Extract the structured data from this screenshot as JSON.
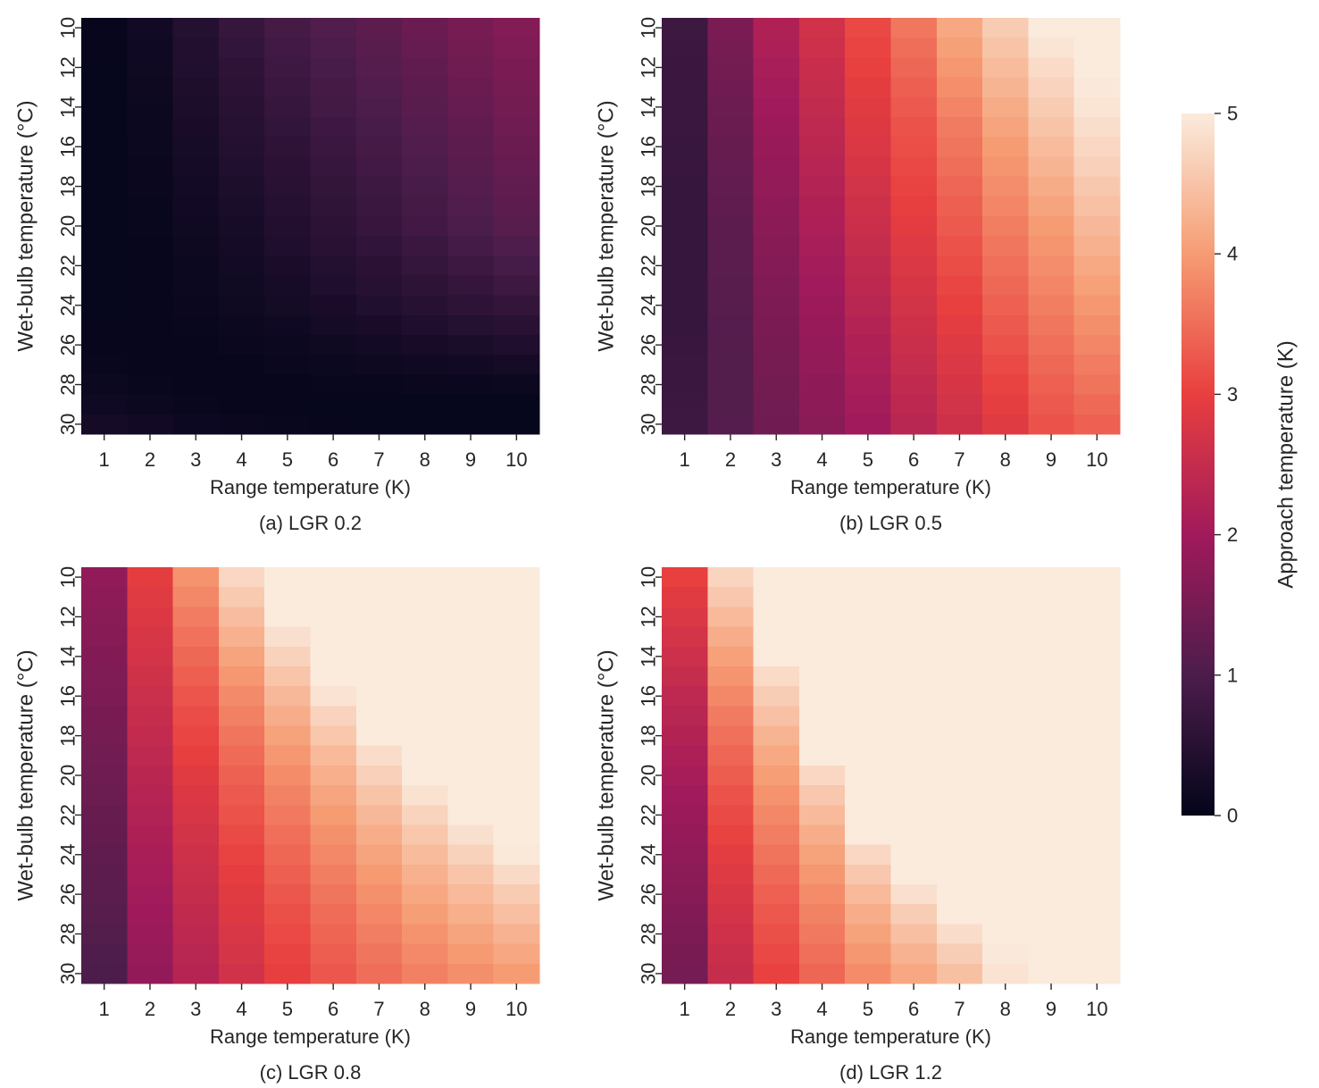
{
  "figure": {
    "colorbar": {
      "label": "Approach temperature (K)",
      "ticks": [
        "0",
        "1",
        "2",
        "3",
        "4",
        "5"
      ],
      "vmin": 0,
      "vmax": 5,
      "colormap": "rocket",
      "colormap_stops": [
        "#03051a",
        "#4c1d4b",
        "#a11a5b",
        "#e83f3f",
        "#f69c73",
        "#faebdd"
      ]
    }
  },
  "chart_data": [
    {
      "type": "heatmap",
      "caption": "(a) LGR 0.2",
      "xlabel": "Range temperature (K)",
      "ylabel": "Wet-bulb temperature (°C)",
      "x_tick_labels": [
        "1",
        "2",
        "3",
        "4",
        "5",
        "6",
        "7",
        "8",
        "9",
        "10"
      ],
      "y_tick_labels": [
        "10",
        "12",
        "14",
        "16",
        "18",
        "20",
        "22",
        "24",
        "26",
        "28",
        "30"
      ],
      "x": [
        1,
        2,
        3,
        4,
        5,
        6,
        7,
        8,
        9,
        10
      ],
      "y": [
        10,
        11,
        12,
        13,
        14,
        15,
        16,
        17,
        18,
        19,
        20,
        21,
        22,
        23,
        24,
        25,
        26,
        27,
        28,
        29,
        30
      ],
      "zrange": [
        0,
        5
      ],
      "values": [
        [
          0.05,
          0.2,
          0.45,
          0.7,
          0.9,
          1.05,
          1.2,
          1.35,
          1.5,
          1.65
        ],
        [
          0.05,
          0.18,
          0.42,
          0.65,
          0.85,
          1.0,
          1.15,
          1.3,
          1.45,
          1.6
        ],
        [
          0.04,
          0.16,
          0.4,
          0.6,
          0.8,
          0.95,
          1.1,
          1.25,
          1.4,
          1.55
        ],
        [
          0.04,
          0.15,
          0.37,
          0.56,
          0.75,
          0.9,
          1.05,
          1.2,
          1.35,
          1.5
        ],
        [
          0.04,
          0.13,
          0.34,
          0.52,
          0.7,
          0.86,
          1.0,
          1.15,
          1.3,
          1.45
        ],
        [
          0.04,
          0.12,
          0.31,
          0.48,
          0.65,
          0.81,
          0.95,
          1.1,
          1.25,
          1.4
        ],
        [
          0.04,
          0.11,
          0.28,
          0.44,
          0.6,
          0.76,
          0.9,
          1.05,
          1.2,
          1.35
        ],
        [
          0.04,
          0.1,
          0.25,
          0.4,
          0.55,
          0.71,
          0.85,
          1.0,
          1.15,
          1.3
        ],
        [
          0.04,
          0.09,
          0.22,
          0.36,
          0.5,
          0.66,
          0.8,
          0.95,
          1.1,
          1.25
        ],
        [
          0.04,
          0.08,
          0.2,
          0.32,
          0.46,
          0.61,
          0.75,
          0.9,
          1.05,
          1.2
        ],
        [
          0.04,
          0.07,
          0.17,
          0.28,
          0.42,
          0.56,
          0.7,
          0.85,
          0.98,
          1.12
        ],
        [
          0.04,
          0.06,
          0.15,
          0.25,
          0.38,
          0.5,
          0.63,
          0.76,
          0.89,
          1.02
        ],
        [
          0.04,
          0.06,
          0.13,
          0.22,
          0.33,
          0.44,
          0.55,
          0.67,
          0.79,
          0.91
        ],
        [
          0.04,
          0.05,
          0.11,
          0.19,
          0.28,
          0.38,
          0.48,
          0.58,
          0.68,
          0.79
        ],
        [
          0.04,
          0.05,
          0.09,
          0.16,
          0.23,
          0.31,
          0.4,
          0.49,
          0.57,
          0.66
        ],
        [
          0.05,
          0.05,
          0.07,
          0.12,
          0.18,
          0.24,
          0.31,
          0.38,
          0.45,
          0.52
        ],
        [
          0.06,
          0.05,
          0.06,
          0.09,
          0.13,
          0.17,
          0.22,
          0.27,
          0.32,
          0.38
        ],
        [
          0.08,
          0.06,
          0.05,
          0.06,
          0.09,
          0.12,
          0.15,
          0.18,
          0.21,
          0.24
        ],
        [
          0.12,
          0.08,
          0.06,
          0.05,
          0.06,
          0.07,
          0.08,
          0.09,
          0.1,
          0.11
        ],
        [
          0.18,
          0.12,
          0.08,
          0.06,
          0.05,
          0.04,
          0.04,
          0.04,
          0.04,
          0.04
        ],
        [
          0.25,
          0.2,
          0.14,
          0.1,
          0.07,
          0.05,
          0.04,
          0.04,
          0.04,
          0.04
        ]
      ]
    },
    {
      "type": "heatmap",
      "caption": "(b) LGR 0.5",
      "xlabel": "Range temperature (K)",
      "ylabel": "Wet-bulb temperature (°C)",
      "x_tick_labels": [
        "1",
        "2",
        "3",
        "4",
        "5",
        "6",
        "7",
        "8",
        "9",
        "10"
      ],
      "y_tick_labels": [
        "10",
        "12",
        "14",
        "16",
        "18",
        "20",
        "22",
        "24",
        "26",
        "28",
        "30"
      ],
      "x": [
        1,
        2,
        3,
        4,
        5,
        6,
        7,
        8,
        9,
        10
      ],
      "y": [
        10,
        11,
        12,
        13,
        14,
        15,
        16,
        17,
        18,
        19,
        20,
        21,
        22,
        23,
        24,
        25,
        26,
        27,
        28,
        29,
        30
      ],
      "zrange": [
        0,
        5
      ],
      "values": [
        [
          0.8,
          1.55,
          2.2,
          2.65,
          3.1,
          3.6,
          4.15,
          4.6,
          5.0,
          5.0
        ],
        [
          0.78,
          1.5,
          2.15,
          2.6,
          3.05,
          3.5,
          4.05,
          4.5,
          4.92,
          5.0
        ],
        [
          0.77,
          1.46,
          2.1,
          2.55,
          3.0,
          3.42,
          3.95,
          4.4,
          4.8,
          5.0
        ],
        [
          0.76,
          1.42,
          2.05,
          2.5,
          2.95,
          3.35,
          3.85,
          4.3,
          4.7,
          4.98
        ],
        [
          0.75,
          1.38,
          2.0,
          2.45,
          2.9,
          3.28,
          3.75,
          4.2,
          4.6,
          4.92
        ],
        [
          0.74,
          1.35,
          1.95,
          2.4,
          2.85,
          3.22,
          3.65,
          4.1,
          4.5,
          4.84
        ],
        [
          0.73,
          1.32,
          1.9,
          2.35,
          2.8,
          3.16,
          3.58,
          4.0,
          4.4,
          4.75
        ],
        [
          0.72,
          1.29,
          1.86,
          2.3,
          2.74,
          3.1,
          3.5,
          3.92,
          4.3,
          4.66
        ],
        [
          0.71,
          1.26,
          1.82,
          2.25,
          2.68,
          3.04,
          3.42,
          3.84,
          4.2,
          4.56
        ],
        [
          0.7,
          1.23,
          1.78,
          2.2,
          2.62,
          2.98,
          3.35,
          3.76,
          4.1,
          4.46
        ],
        [
          0.7,
          1.2,
          1.74,
          2.15,
          2.56,
          2.92,
          3.28,
          3.68,
          4.0,
          4.36
        ],
        [
          0.7,
          1.18,
          1.7,
          2.1,
          2.5,
          2.86,
          3.21,
          3.6,
          3.92,
          4.26
        ],
        [
          0.7,
          1.16,
          1.66,
          2.05,
          2.44,
          2.8,
          3.14,
          3.52,
          3.84,
          4.16
        ],
        [
          0.7,
          1.14,
          1.62,
          2.0,
          2.38,
          2.74,
          3.07,
          3.44,
          3.76,
          4.06
        ],
        [
          0.7,
          1.12,
          1.58,
          1.95,
          2.32,
          2.68,
          3.0,
          3.36,
          3.68,
          3.96
        ],
        [
          0.71,
          1.1,
          1.55,
          1.9,
          2.26,
          2.62,
          2.93,
          3.28,
          3.6,
          3.86
        ],
        [
          0.72,
          1.09,
          1.52,
          1.86,
          2.2,
          2.56,
          2.86,
          3.2,
          3.52,
          3.76
        ],
        [
          0.74,
          1.08,
          1.49,
          1.82,
          2.15,
          2.5,
          2.8,
          3.12,
          3.44,
          3.66
        ],
        [
          0.76,
          1.08,
          1.46,
          1.78,
          2.1,
          2.44,
          2.74,
          3.04,
          3.36,
          3.56
        ],
        [
          0.78,
          1.08,
          1.44,
          1.75,
          2.05,
          2.38,
          2.68,
          2.96,
          3.28,
          3.46
        ],
        [
          0.8,
          1.1,
          1.42,
          1.72,
          2.0,
          2.32,
          2.62,
          2.88,
          3.2,
          3.36
        ]
      ]
    },
    {
      "type": "heatmap",
      "caption": "(c) LGR 0.8",
      "xlabel": "Range temperature (K)",
      "ylabel": "Wet-bulb temperature (°C)",
      "x_tick_labels": [
        "1",
        "2",
        "3",
        "4",
        "5",
        "6",
        "7",
        "8",
        "9",
        "10"
      ],
      "y_tick_labels": [
        "10",
        "12",
        "14",
        "16",
        "18",
        "20",
        "22",
        "24",
        "26",
        "28",
        "30"
      ],
      "x": [
        1,
        2,
        3,
        4,
        5,
        6,
        7,
        8,
        9,
        10
      ],
      "y": [
        10,
        11,
        12,
        13,
        14,
        15,
        16,
        17,
        18,
        19,
        20,
        21,
        22,
        23,
        24,
        25,
        26,
        27,
        28,
        29,
        30
      ],
      "zrange": [
        0,
        5
      ],
      "values": [
        [
          1.8,
          2.95,
          3.9,
          4.75,
          5.0,
          5.0,
          5.0,
          5.0,
          5.0,
          5.0
        ],
        [
          1.76,
          2.88,
          3.78,
          4.58,
          5.0,
          5.0,
          5.0,
          5.0,
          5.0,
          5.0
        ],
        [
          1.72,
          2.82,
          3.66,
          4.42,
          5.0,
          5.0,
          5.0,
          5.0,
          5.0,
          5.0
        ],
        [
          1.68,
          2.76,
          3.55,
          4.26,
          4.85,
          5.0,
          5.0,
          5.0,
          5.0,
          5.0
        ],
        [
          1.64,
          2.7,
          3.44,
          4.1,
          4.68,
          5.0,
          5.0,
          5.0,
          5.0,
          5.0
        ],
        [
          1.6,
          2.64,
          3.34,
          3.96,
          4.52,
          5.0,
          5.0,
          5.0,
          5.0,
          5.0
        ],
        [
          1.56,
          2.58,
          3.24,
          3.82,
          4.36,
          4.9,
          5.0,
          5.0,
          5.0,
          5.0
        ],
        [
          1.52,
          2.52,
          3.15,
          3.7,
          4.22,
          4.7,
          5.0,
          5.0,
          5.0,
          5.0
        ],
        [
          1.48,
          2.46,
          3.06,
          3.58,
          4.08,
          4.54,
          5.0,
          5.0,
          5.0,
          5.0
        ],
        [
          1.44,
          2.4,
          2.98,
          3.47,
          3.95,
          4.38,
          4.82,
          5.0,
          5.0,
          5.0
        ],
        [
          1.4,
          2.34,
          2.9,
          3.37,
          3.83,
          4.24,
          4.66,
          5.0,
          5.0,
          5.0
        ],
        [
          1.36,
          2.28,
          2.82,
          3.28,
          3.72,
          4.12,
          4.5,
          4.88,
          5.0,
          5.0
        ],
        [
          1.32,
          2.22,
          2.75,
          3.2,
          3.62,
          4.0,
          4.36,
          4.7,
          5.0,
          5.0
        ],
        [
          1.28,
          2.17,
          2.68,
          3.12,
          3.52,
          3.88,
          4.22,
          4.54,
          4.86,
          5.0
        ],
        [
          1.24,
          2.12,
          2.62,
          3.04,
          3.43,
          3.78,
          4.1,
          4.4,
          4.68,
          4.96
        ],
        [
          1.2,
          2.07,
          2.56,
          2.97,
          3.34,
          3.68,
          3.98,
          4.26,
          4.52,
          4.78
        ],
        [
          1.16,
          2.02,
          2.5,
          2.9,
          3.26,
          3.58,
          3.87,
          4.14,
          4.38,
          4.6
        ],
        [
          1.12,
          1.97,
          2.44,
          2.84,
          3.18,
          3.49,
          3.77,
          4.02,
          4.24,
          4.44
        ],
        [
          1.08,
          1.92,
          2.38,
          2.78,
          3.11,
          3.41,
          3.67,
          3.9,
          4.1,
          4.28
        ],
        [
          1.04,
          1.88,
          2.33,
          2.72,
          3.04,
          3.33,
          3.58,
          3.8,
          3.98,
          4.14
        ],
        [
          1.0,
          1.84,
          2.28,
          2.66,
          2.98,
          3.26,
          3.5,
          3.7,
          3.86,
          4.0
        ]
      ]
    },
    {
      "type": "heatmap",
      "caption": "(d) LGR 1.2",
      "xlabel": "Range temperature (K)",
      "ylabel": "Wet-bulb temperature (°C)",
      "x_tick_labels": [
        "1",
        "2",
        "3",
        "4",
        "5",
        "6",
        "7",
        "8",
        "9",
        "10"
      ],
      "y_tick_labels": [
        "10",
        "12",
        "14",
        "16",
        "18",
        "20",
        "22",
        "24",
        "26",
        "28",
        "30"
      ],
      "x": [
        1,
        2,
        3,
        4,
        5,
        6,
        7,
        8,
        9,
        10
      ],
      "y": [
        10,
        11,
        12,
        13,
        14,
        15,
        16,
        17,
        18,
        19,
        20,
        21,
        22,
        23,
        24,
        25,
        26,
        27,
        28,
        29,
        30
      ],
      "zrange": [
        0,
        5
      ],
      "values": [
        [
          3.0,
          4.72,
          5.0,
          5.0,
          5.0,
          5.0,
          5.0,
          5.0,
          5.0,
          5.0
        ],
        [
          2.9,
          4.55,
          5.0,
          5.0,
          5.0,
          5.0,
          5.0,
          5.0,
          5.0,
          5.0
        ],
        [
          2.8,
          4.38,
          5.0,
          5.0,
          5.0,
          5.0,
          5.0,
          5.0,
          5.0,
          5.0
        ],
        [
          2.7,
          4.22,
          5.0,
          5.0,
          5.0,
          5.0,
          5.0,
          5.0,
          5.0,
          5.0
        ],
        [
          2.6,
          4.06,
          5.0,
          5.0,
          5.0,
          5.0,
          5.0,
          5.0,
          5.0,
          5.0
        ],
        [
          2.5,
          3.92,
          4.8,
          5.0,
          5.0,
          5.0,
          5.0,
          5.0,
          5.0,
          5.0
        ],
        [
          2.4,
          3.78,
          4.62,
          5.0,
          5.0,
          5.0,
          5.0,
          5.0,
          5.0,
          5.0
        ],
        [
          2.32,
          3.65,
          4.46,
          5.0,
          5.0,
          5.0,
          5.0,
          5.0,
          5.0,
          5.0
        ],
        [
          2.24,
          3.53,
          4.3,
          5.0,
          5.0,
          5.0,
          5.0,
          5.0,
          5.0,
          5.0
        ],
        [
          2.16,
          3.42,
          4.16,
          5.0,
          5.0,
          5.0,
          5.0,
          5.0,
          5.0,
          5.0
        ],
        [
          2.08,
          3.32,
          4.02,
          4.75,
          5.0,
          5.0,
          5.0,
          5.0,
          5.0,
          5.0
        ],
        [
          2.0,
          3.22,
          3.9,
          4.55,
          5.0,
          5.0,
          5.0,
          5.0,
          5.0,
          5.0
        ],
        [
          1.93,
          3.12,
          3.78,
          4.38,
          5.0,
          5.0,
          5.0,
          5.0,
          5.0,
          5.0
        ],
        [
          1.86,
          3.03,
          3.67,
          4.22,
          5.0,
          5.0,
          5.0,
          5.0,
          5.0,
          5.0
        ],
        [
          1.8,
          2.94,
          3.56,
          4.08,
          4.75,
          5.0,
          5.0,
          5.0,
          5.0,
          5.0
        ],
        [
          1.74,
          2.86,
          3.46,
          3.95,
          4.55,
          5.0,
          5.0,
          5.0,
          5.0,
          5.0
        ],
        [
          1.68,
          2.78,
          3.36,
          3.83,
          4.38,
          4.85,
          5.0,
          5.0,
          5.0,
          5.0
        ],
        [
          1.62,
          2.7,
          3.27,
          3.72,
          4.22,
          4.62,
          5.0,
          5.0,
          5.0,
          5.0
        ],
        [
          1.57,
          2.63,
          3.18,
          3.62,
          4.08,
          4.44,
          4.82,
          5.0,
          5.0,
          5.0
        ],
        [
          1.52,
          2.56,
          3.1,
          3.52,
          3.95,
          4.28,
          4.62,
          4.98,
          5.0,
          5.0
        ],
        [
          1.47,
          2.5,
          3.02,
          3.43,
          3.83,
          4.14,
          4.45,
          4.9,
          5.0,
          5.0
        ]
      ]
    }
  ]
}
